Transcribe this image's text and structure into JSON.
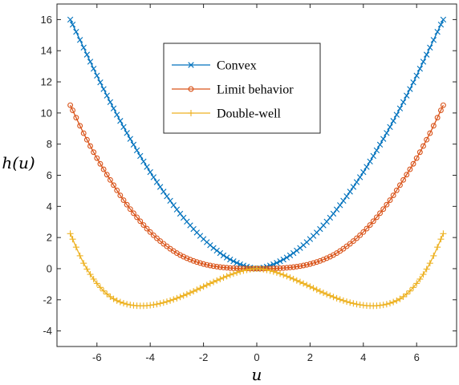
{
  "chart_data": {
    "type": "line",
    "xlabel": "u",
    "ylabel": "h(u)",
    "xlim": [
      -7.5,
      7.5
    ],
    "ylim": [
      -5,
      17
    ],
    "xticks": [
      -6,
      -4,
      -2,
      0,
      2,
      4,
      6
    ],
    "yticks": [
      -4,
      -2,
      0,
      2,
      4,
      6,
      8,
      10,
      12,
      14,
      16
    ],
    "xtick_labels": [
      "-6",
      "-4",
      "-2",
      "0",
      "2",
      "4",
      "6"
    ],
    "ytick_labels": [
      "-4",
      "-2",
      "0",
      "2",
      "4",
      "6",
      "8",
      "10",
      "12",
      "14",
      "16"
    ],
    "grid": false,
    "legend_position": "top-center",
    "x": [
      -7,
      -6.5,
      -6,
      -5.5,
      -5,
      -4.5,
      -4,
      -3.5,
      -3,
      -2.5,
      -2,
      -1.5,
      -1,
      -0.5,
      0,
      0.5,
      1,
      1.5,
      2,
      2.5,
      3,
      3.5,
      4,
      4.5,
      5,
      5.5,
      6,
      6.5,
      7
    ],
    "series": [
      {
        "name": "Convex",
        "color": "#0072BD",
        "marker": "x",
        "values": [
          16.0,
          14.2,
          12.4,
          10.7,
          9.1,
          7.6,
          6.2,
          4.95,
          3.8,
          2.78,
          1.9,
          1.16,
          0.59,
          0.2,
          0.0,
          0.2,
          0.59,
          1.16,
          1.9,
          2.78,
          3.8,
          4.95,
          6.2,
          7.6,
          9.1,
          10.7,
          12.4,
          14.2,
          16.0
        ]
      },
      {
        "name": "Limit behavior",
        "color": "#D95319",
        "marker": "o",
        "values": [
          10.5,
          8.7,
          7.1,
          5.7,
          4.4,
          3.3,
          2.35,
          1.6,
          1.0,
          0.58,
          0.3,
          0.13,
          0.04,
          0.01,
          0.0,
          0.01,
          0.04,
          0.13,
          0.3,
          0.58,
          1.0,
          1.6,
          2.35,
          3.3,
          4.4,
          5.7,
          7.1,
          8.7,
          10.5
        ]
      },
      {
        "name": "Double-well",
        "color": "#EDB120",
        "marker": "+",
        "values": [
          2.25,
          0.35,
          -0.95,
          -1.8,
          -2.22,
          -2.38,
          -2.35,
          -2.18,
          -1.9,
          -1.55,
          -1.15,
          -0.76,
          -0.4,
          -0.13,
          0.0,
          -0.13,
          -0.4,
          -0.76,
          -1.15,
          -1.55,
          -1.9,
          -2.18,
          -2.35,
          -2.38,
          -2.22,
          -1.8,
          -0.95,
          0.35,
          2.25
        ]
      }
    ]
  }
}
